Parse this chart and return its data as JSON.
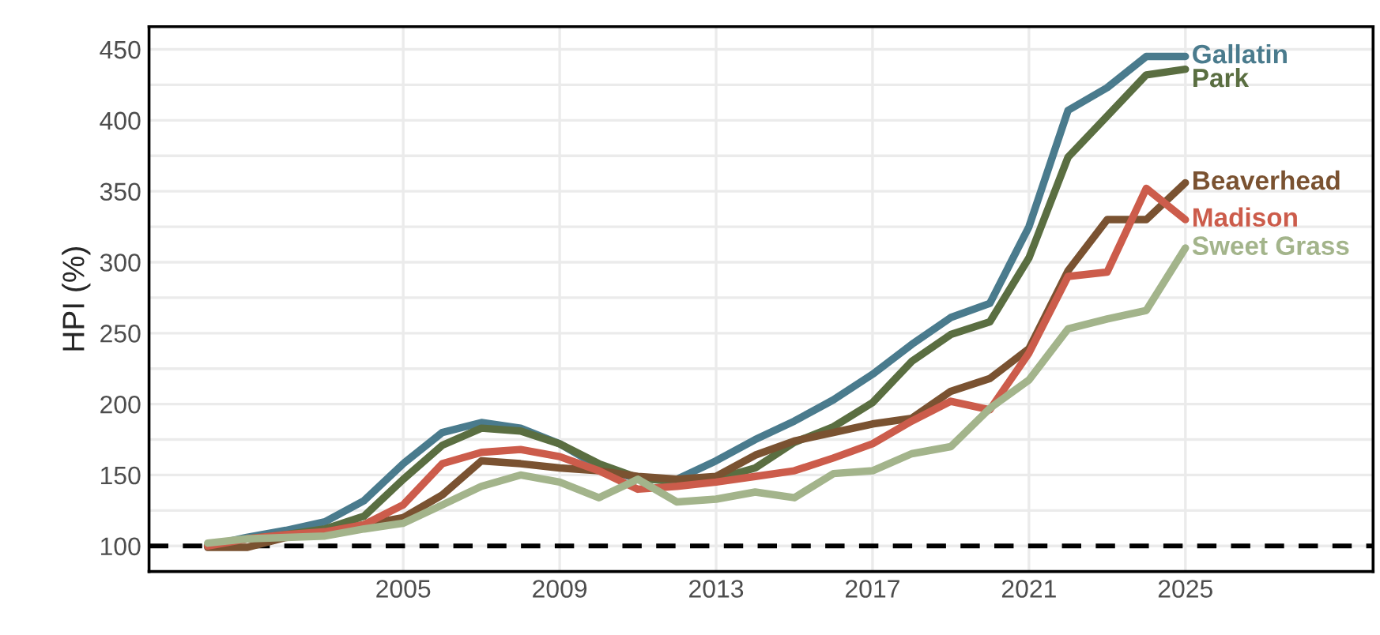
{
  "chart_data": {
    "type": "line",
    "ylabel": "HPI (%)",
    "x": [
      2000,
      2001,
      2002,
      2003,
      2004,
      2005,
      2006,
      2007,
      2008,
      2009,
      2010,
      2011,
      2012,
      2013,
      2014,
      2015,
      2016,
      2017,
      2018,
      2019,
      2020,
      2021,
      2022,
      2023,
      2024,
      2025
    ],
    "series": [
      {
        "name": "Gallatin",
        "color": "#4a7b8d",
        "values": [
          100,
          106,
          111,
          117,
          132,
          158,
          180,
          187,
          183,
          172,
          156,
          147,
          147,
          160,
          175,
          188,
          203,
          221,
          242,
          261,
          271,
          325,
          407,
          423,
          445,
          445
        ]
      },
      {
        "name": "Park",
        "color": "#5a6e41",
        "values": [
          100,
          105,
          108,
          112,
          121,
          147,
          171,
          183,
          181,
          172,
          158,
          148,
          145,
          147,
          155,
          173,
          184,
          201,
          230,
          249,
          258,
          303,
          374,
          403,
          432,
          436
        ]
      },
      {
        "name": "Beaverhead",
        "color": "#7a5231",
        "values": [
          99,
          99,
          106,
          110,
          115,
          120,
          136,
          160,
          158,
          155,
          153,
          149,
          147,
          149,
          164,
          174,
          180,
          186,
          190,
          209,
          218,
          239,
          294,
          330,
          330,
          356
        ]
      },
      {
        "name": "Madison",
        "color": "#cc5c4b",
        "values": [
          100,
          105,
          108,
          110,
          115,
          129,
          158,
          166,
          168,
          163,
          153,
          140,
          142,
          145,
          149,
          153,
          162,
          172,
          188,
          202,
          196,
          236,
          290,
          293,
          352,
          330
        ]
      },
      {
        "name": "Sweet Grass",
        "color": "#a3b48b",
        "values": [
          102,
          105,
          106,
          107,
          112,
          116,
          129,
          142,
          150,
          145,
          134,
          147,
          131,
          133,
          138,
          134,
          151,
          153,
          165,
          170,
          197,
          217,
          253,
          260,
          266,
          310
        ]
      }
    ],
    "xlim": [
      1998.5,
      2029.8
    ],
    "xticks": [
      2005,
      2009,
      2013,
      2017,
      2021,
      2025
    ],
    "ylim": [
      82,
      466
    ],
    "yticks": [
      100,
      {
        "value": 125,
        "label": null
      },
      150,
      {
        "value": 175,
        "label": null
      },
      200,
      {
        "value": 225,
        "label": null
      },
      250,
      {
        "value": 275,
        "label": null
      },
      300,
      {
        "value": 325,
        "label": null
      },
      350,
      {
        "value": 375,
        "label": null
      },
      400,
      {
        "value": 425,
        "label": null
      },
      450
    ],
    "ref_lines": [
      {
        "axis": "y",
        "value": 100,
        "color": "#000000",
        "line_style": "dashed"
      }
    ],
    "grid": true,
    "legend": false,
    "marker": "none",
    "line_style": "solid"
  }
}
